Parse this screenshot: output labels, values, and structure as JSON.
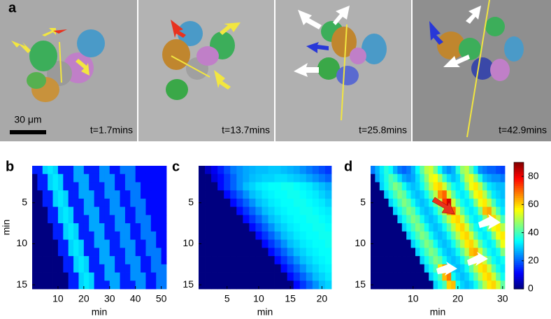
{
  "panel_a": {
    "label": "a",
    "scale_bar": "30 μm",
    "times": [
      "t=1.7mins",
      "t=13.7mins",
      "t=25.8mins",
      "t=42.9mins"
    ]
  },
  "chart_data": [
    {
      "type": "heatmap",
      "panel_label": "b",
      "xlabel": "min",
      "ylabel": "min",
      "xlim": [
        0,
        52
      ],
      "ylim": [
        0.5,
        15.5
      ],
      "xticks": [
        10,
        20,
        30,
        40,
        50
      ],
      "yticks": [
        5,
        10,
        15
      ],
      "zlim": [
        0,
        90
      ],
      "colormap": "jet",
      "z": [
        [
          14,
          14,
          30,
          32,
          30,
          14,
          14,
          14,
          26,
          26,
          14,
          14,
          14,
          24,
          24,
          13,
          13,
          22,
          22,
          22,
          12,
          12,
          12,
          12,
          12,
          12
        ],
        [
          0,
          14,
          14,
          30,
          32,
          30,
          14,
          14,
          26,
          26,
          26,
          14,
          14,
          24,
          24,
          24,
          13,
          13,
          22,
          22,
          12,
          12,
          12,
          12,
          12,
          12
        ],
        [
          0,
          14,
          14,
          30,
          32,
          30,
          14,
          14,
          14,
          26,
          26,
          14,
          14,
          14,
          24,
          24,
          13,
          13,
          22,
          22,
          22,
          12,
          12,
          12,
          12,
          12
        ],
        [
          0,
          0,
          14,
          14,
          30,
          32,
          30,
          14,
          14,
          26,
          26,
          26,
          14,
          14,
          24,
          24,
          24,
          13,
          13,
          22,
          22,
          12,
          12,
          12,
          12,
          12
        ],
        [
          0,
          0,
          14,
          14,
          30,
          32,
          30,
          14,
          14,
          14,
          26,
          26,
          14,
          14,
          14,
          24,
          24,
          13,
          13,
          22,
          22,
          22,
          12,
          12,
          12,
          12
        ],
        [
          0,
          0,
          0,
          14,
          14,
          30,
          32,
          30,
          14,
          14,
          26,
          26,
          26,
          14,
          14,
          24,
          24,
          24,
          13,
          13,
          22,
          22,
          12,
          12,
          12,
          12
        ],
        [
          0,
          0,
          0,
          14,
          14,
          30,
          32,
          30,
          14,
          14,
          14,
          26,
          26,
          14,
          14,
          14,
          24,
          24,
          13,
          13,
          22,
          22,
          22,
          12,
          12,
          12
        ],
        [
          0,
          0,
          0,
          0,
          14,
          14,
          30,
          32,
          30,
          14,
          14,
          26,
          26,
          26,
          14,
          14,
          24,
          24,
          24,
          13,
          13,
          22,
          22,
          12,
          12,
          12
        ],
        [
          0,
          0,
          0,
          0,
          14,
          14,
          30,
          32,
          30,
          14,
          14,
          14,
          26,
          26,
          14,
          14,
          14,
          24,
          24,
          13,
          13,
          22,
          22,
          22,
          12,
          12
        ],
        [
          0,
          0,
          0,
          0,
          0,
          14,
          14,
          30,
          32,
          30,
          14,
          14,
          26,
          26,
          26,
          14,
          14,
          24,
          24,
          24,
          13,
          13,
          22,
          22,
          12,
          12
        ],
        [
          0,
          0,
          0,
          0,
          0,
          14,
          14,
          30,
          32,
          30,
          14,
          14,
          14,
          26,
          26,
          14,
          14,
          14,
          24,
          24,
          13,
          13,
          22,
          22,
          22,
          12
        ],
        [
          0,
          0,
          0,
          0,
          0,
          0,
          14,
          14,
          30,
          32,
          30,
          14,
          14,
          26,
          26,
          26,
          14,
          14,
          24,
          24,
          24,
          13,
          13,
          22,
          22,
          12
        ],
        [
          0,
          0,
          0,
          0,
          0,
          0,
          14,
          14,
          30,
          32,
          30,
          14,
          14,
          14,
          26,
          26,
          14,
          14,
          14,
          24,
          24,
          13,
          13,
          22,
          22,
          22
        ],
        [
          0,
          0,
          0,
          0,
          0,
          0,
          0,
          14,
          14,
          30,
          32,
          30,
          14,
          14,
          26,
          26,
          26,
          14,
          14,
          24,
          24,
          24,
          13,
          13,
          22,
          22
        ],
        [
          0,
          0,
          0,
          0,
          0,
          0,
          0,
          14,
          14,
          30,
          32,
          30,
          14,
          14,
          14,
          26,
          26,
          14,
          14,
          14,
          24,
          24,
          13,
          13,
          22,
          22
        ]
      ]
    },
    {
      "type": "heatmap",
      "panel_label": "c",
      "xlabel": "min",
      "xlim": [
        0.5,
        21.5
      ],
      "ylim": [
        0.5,
        15.5
      ],
      "xticks": [
        5,
        10,
        15,
        20
      ],
      "yticks": [
        5,
        10,
        15
      ],
      "zlim": [
        0,
        90
      ],
      "colormap": "jet",
      "z": [
        [
          0,
          6,
          10,
          14,
          18,
          22,
          24,
          26,
          27,
          28,
          28,
          29,
          29,
          28,
          27,
          26,
          24,
          22,
          20,
          18,
          16
        ],
        [
          0,
          0,
          8,
          12,
          16,
          20,
          24,
          26,
          28,
          29,
          30,
          30,
          31,
          31,
          30,
          29,
          28,
          26,
          24,
          22,
          20
        ],
        [
          0,
          0,
          0,
          12,
          16,
          20,
          24,
          28,
          30,
          32,
          33,
          34,
          34,
          35,
          35,
          34,
          33,
          32,
          30,
          28,
          26
        ],
        [
          0,
          0,
          0,
          0,
          12,
          16,
          20,
          24,
          28,
          30,
          32,
          33,
          34,
          34,
          35,
          35,
          34,
          33,
          32,
          30,
          28
        ],
        [
          0,
          0,
          0,
          0,
          0,
          12,
          16,
          20,
          24,
          28,
          30,
          32,
          33,
          34,
          34,
          35,
          35,
          34,
          33,
          32,
          30
        ],
        [
          0,
          0,
          0,
          0,
          0,
          0,
          12,
          16,
          20,
          24,
          28,
          30,
          32,
          33,
          34,
          34,
          35,
          35,
          34,
          33,
          32
        ],
        [
          0,
          0,
          0,
          0,
          0,
          0,
          0,
          12,
          16,
          20,
          24,
          28,
          30,
          32,
          33,
          34,
          34,
          35,
          35,
          34,
          33
        ],
        [
          0,
          0,
          0,
          0,
          0,
          0,
          0,
          0,
          12,
          16,
          20,
          24,
          28,
          30,
          32,
          33,
          34,
          34,
          35,
          35,
          34
        ],
        [
          0,
          0,
          0,
          0,
          0,
          0,
          0,
          0,
          0,
          12,
          16,
          20,
          24,
          28,
          30,
          32,
          33,
          34,
          34,
          35,
          35
        ],
        [
          0,
          0,
          0,
          0,
          0,
          0,
          0,
          0,
          0,
          0,
          12,
          16,
          20,
          24,
          28,
          30,
          32,
          33,
          34,
          34,
          35
        ],
        [
          0,
          0,
          0,
          0,
          0,
          0,
          0,
          0,
          0,
          0,
          0,
          12,
          16,
          20,
          24,
          28,
          30,
          32,
          33,
          34,
          34
        ],
        [
          0,
          0,
          0,
          0,
          0,
          0,
          0,
          0,
          0,
          0,
          0,
          0,
          12,
          16,
          20,
          24,
          28,
          30,
          32,
          33,
          34
        ],
        [
          0,
          0,
          0,
          0,
          0,
          0,
          0,
          0,
          0,
          0,
          0,
          0,
          0,
          12,
          16,
          20,
          24,
          28,
          30,
          32,
          33
        ],
        [
          0,
          0,
          0,
          0,
          0,
          0,
          0,
          0,
          0,
          0,
          0,
          0,
          0,
          0,
          12,
          16,
          20,
          24,
          28,
          30,
          32
        ],
        [
          0,
          0,
          0,
          0,
          0,
          0,
          0,
          0,
          0,
          0,
          0,
          0,
          0,
          0,
          0,
          12,
          16,
          20,
          24,
          28,
          30
        ]
      ]
    },
    {
      "type": "heatmap",
      "panel_label": "d",
      "xlabel": "min",
      "xlim": [
        0.5,
        30.5
      ],
      "ylim": [
        0.5,
        15.5
      ],
      "xticks": [
        10,
        20,
        30
      ],
      "yticks": [
        5,
        10,
        15
      ],
      "zlim": [
        0,
        90
      ],
      "zticks": [
        0,
        20,
        40,
        60,
        80
      ],
      "colormap": "jet",
      "colorbar": true,
      "z": [
        [
          22,
          27,
          32,
          37,
          34,
          27,
          22,
          20,
          22,
          27,
          34,
          42,
          50,
          52,
          44,
          34,
          27,
          24,
          27,
          37,
          47,
          50,
          42,
          32,
          24,
          22,
          20,
          20,
          18,
          17
        ],
        [
          0,
          26,
          31,
          36,
          41,
          38,
          31,
          26,
          24,
          26,
          31,
          38,
          46,
          54,
          56,
          48,
          38,
          31,
          28,
          31,
          41,
          51,
          54,
          46,
          36,
          28,
          26,
          24,
          24,
          22
        ],
        [
          0,
          0,
          30,
          35,
          40,
          45,
          42,
          35,
          30,
          28,
          30,
          35,
          42,
          50,
          58,
          60,
          52,
          42,
          35,
          32,
          35,
          45,
          55,
          58,
          50,
          40,
          32,
          30,
          28,
          28
        ],
        [
          0,
          0,
          0,
          30,
          35,
          40,
          45,
          42,
          35,
          30,
          28,
          30,
          35,
          42,
          50,
          66,
          70,
          52,
          42,
          35,
          32,
          35,
          45,
          55,
          58,
          50,
          40,
          32,
          30,
          28
        ],
        [
          0,
          0,
          0,
          0,
          30,
          35,
          40,
          45,
          42,
          35,
          30,
          28,
          30,
          35,
          42,
          50,
          74,
          82,
          52,
          42,
          35,
          32,
          35,
          45,
          55,
          58,
          50,
          40,
          32,
          30
        ],
        [
          0,
          0,
          0,
          0,
          0,
          30,
          35,
          40,
          45,
          42,
          35,
          30,
          28,
          30,
          35,
          42,
          50,
          66,
          70,
          52,
          42,
          35,
          32,
          35,
          45,
          62,
          64,
          50,
          40,
          32
        ],
        [
          0,
          0,
          0,
          0,
          0,
          0,
          30,
          35,
          40,
          45,
          42,
          35,
          30,
          28,
          30,
          35,
          42,
          50,
          58,
          60,
          52,
          42,
          35,
          32,
          35,
          45,
          60,
          60,
          50,
          40
        ],
        [
          0,
          0,
          0,
          0,
          0,
          0,
          0,
          30,
          35,
          40,
          45,
          42,
          35,
          30,
          28,
          30,
          35,
          42,
          50,
          58,
          60,
          52,
          42,
          35,
          32,
          35,
          45,
          55,
          58,
          50
        ],
        [
          0,
          0,
          0,
          0,
          0,
          0,
          0,
          0,
          30,
          35,
          40,
          45,
          42,
          35,
          30,
          28,
          30,
          35,
          42,
          50,
          58,
          60,
          52,
          42,
          35,
          32,
          35,
          45,
          55,
          58
        ],
        [
          0,
          0,
          0,
          0,
          0,
          0,
          0,
          0,
          0,
          30,
          35,
          40,
          45,
          42,
          35,
          30,
          28,
          30,
          35,
          42,
          50,
          58,
          60,
          52,
          42,
          35,
          32,
          35,
          45,
          55
        ],
        [
          0,
          0,
          0,
          0,
          0,
          0,
          0,
          0,
          0,
          0,
          30,
          35,
          40,
          45,
          42,
          35,
          30,
          28,
          30,
          35,
          42,
          50,
          62,
          64,
          52,
          42,
          35,
          32,
          35,
          45
        ],
        [
          0,
          0,
          0,
          0,
          0,
          0,
          0,
          0,
          0,
          0,
          0,
          30,
          35,
          40,
          45,
          42,
          35,
          30,
          28,
          30,
          35,
          42,
          50,
          58,
          60,
          52,
          42,
          35,
          32,
          35
        ],
        [
          0,
          0,
          0,
          0,
          0,
          0,
          0,
          0,
          0,
          0,
          0,
          0,
          30,
          35,
          40,
          58,
          65,
          35,
          30,
          28,
          30,
          35,
          42,
          50,
          58,
          60,
          52,
          42,
          35,
          32
        ],
        [
          0,
          0,
          0,
          0,
          0,
          0,
          0,
          0,
          0,
          0,
          0,
          0,
          0,
          30,
          35,
          40,
          62,
          68,
          35,
          30,
          28,
          30,
          35,
          42,
          50,
          58,
          60,
          52,
          42,
          35
        ],
        [
          0,
          0,
          0,
          0,
          0,
          0,
          0,
          0,
          0,
          0,
          0,
          0,
          0,
          0,
          30,
          35,
          40,
          60,
          62,
          35,
          30,
          28,
          30,
          35,
          42,
          50,
          58,
          60,
          52,
          42
        ]
      ]
    }
  ]
}
